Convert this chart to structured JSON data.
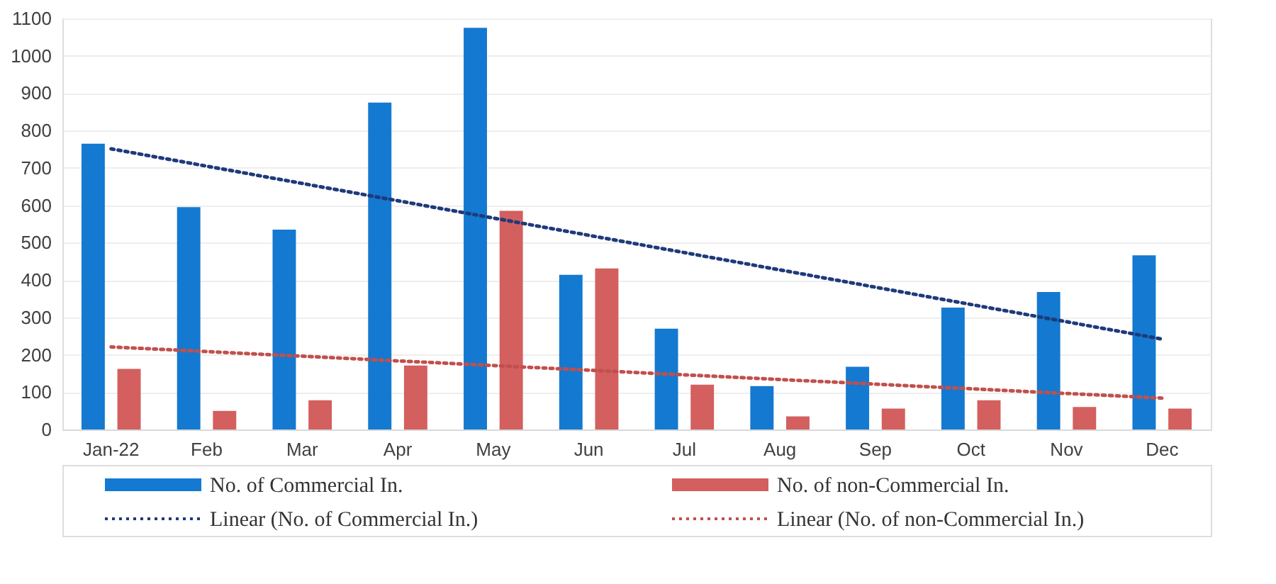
{
  "chart_data": {
    "type": "bar",
    "categories": [
      "Jan-22",
      "Feb",
      "Mar",
      "Apr",
      "May",
      "Jun",
      "Jul",
      "Aug",
      "Sep",
      "Oct",
      "Nov",
      "Dec"
    ],
    "series": [
      {
        "name": "No. of Commercial In.",
        "color": "#1479d0",
        "values": [
          765,
          595,
          535,
          875,
          1075,
          414,
          270,
          116,
          168,
          326,
          368,
          466
        ]
      },
      {
        "name": "No. of non-Commercial In.",
        "color": "#d35f5f",
        "values": [
          162,
          50,
          78,
          171,
          585,
          431,
          120,
          35,
          56,
          78,
          60,
          56
        ]
      },
      {
        "name": "Linear (No. of Commercial In.)",
        "type": "line",
        "line_style": "dotted",
        "color": "#1f3a7a",
        "x": [
          "Jan-22",
          "Dec"
        ],
        "values": [
          751,
          242
        ]
      },
      {
        "name": "Linear (No. of non-Commercial In.)",
        "type": "line",
        "line_style": "dotted",
        "color": "#c0504d",
        "x": [
          "Jan-22",
          "Dec"
        ],
        "values": [
          221,
          84
        ]
      }
    ],
    "ylim": [
      0,
      1100
    ],
    "yticks": [
      0,
      100,
      200,
      300,
      400,
      500,
      600,
      700,
      800,
      900,
      1000,
      1100
    ],
    "grid": "y",
    "legend": "bottom"
  }
}
